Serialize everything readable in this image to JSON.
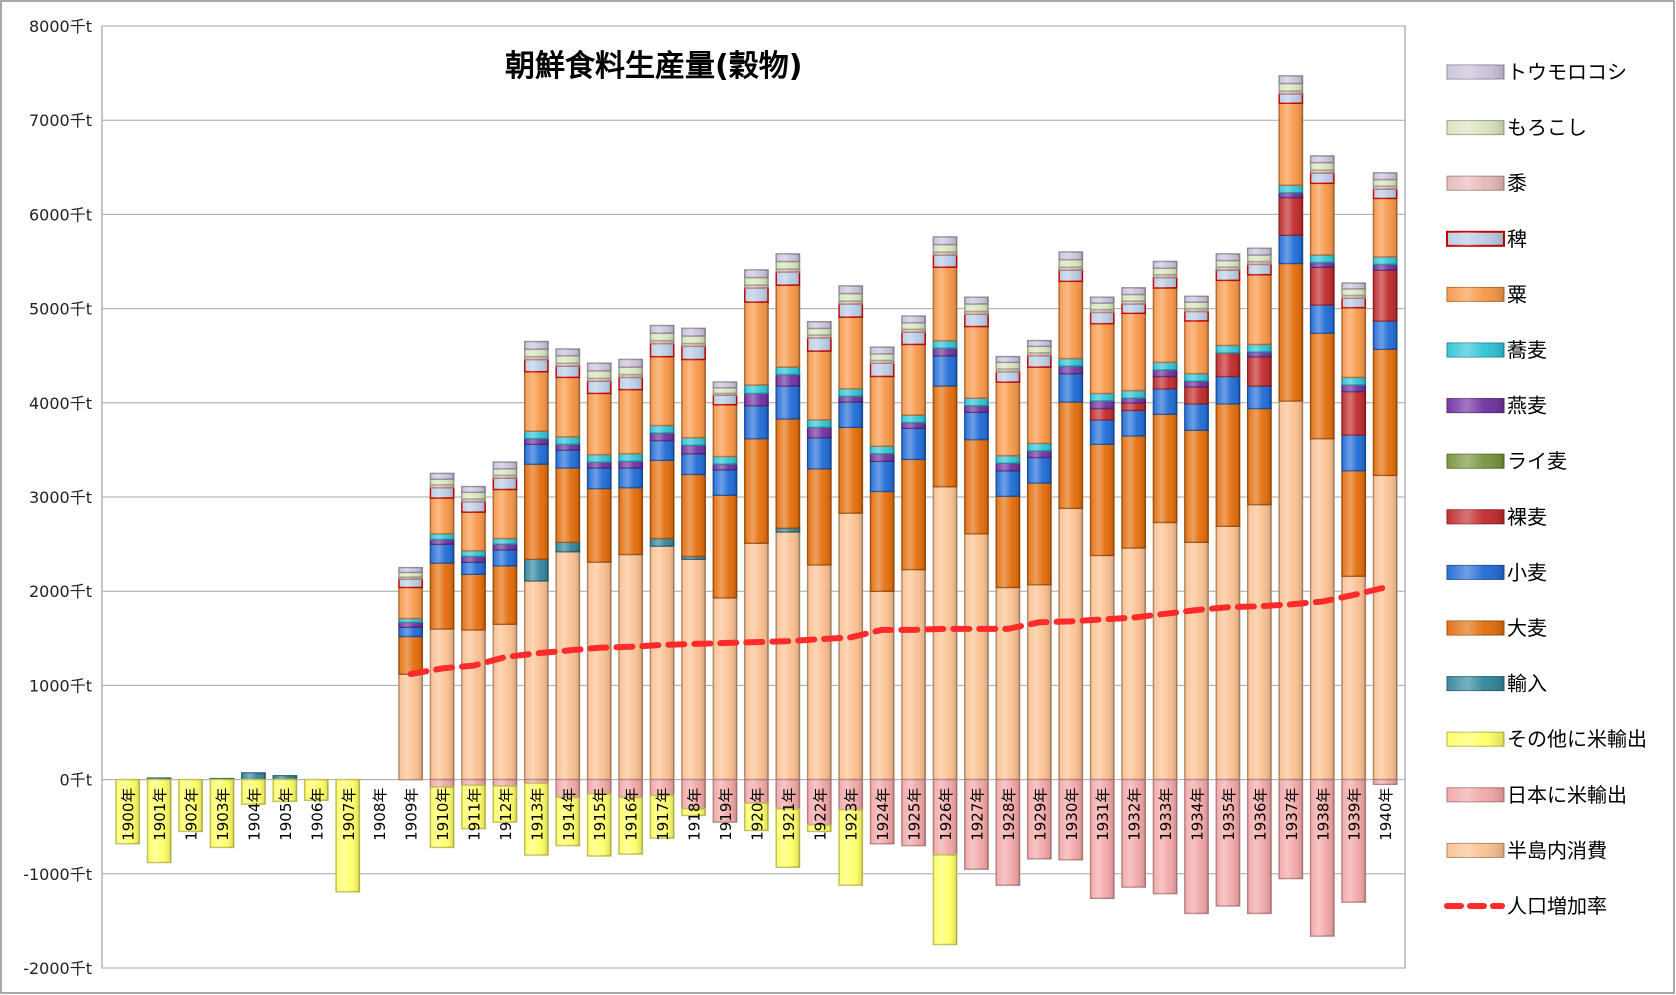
{
  "chart_data": {
    "type": "bar",
    "stacked": true,
    "title": "朝鮮食料生産量(穀物)",
    "xlabel": "",
    "ylabel": "",
    "unit": "千t",
    "ylim": [
      -2000,
      8000
    ],
    "ytick_labels": [
      "-2000千t",
      "-1000千t",
      "0千t",
      "1000千t",
      "2000千t",
      "3000千t",
      "4000千t",
      "5000千t",
      "6000千t",
      "7000千t",
      "8000千t"
    ],
    "grid": true,
    "legend_position": "right",
    "categories": [
      "1900年",
      "1901年",
      "1902年",
      "1903年",
      "1904年",
      "1905年",
      "1906年",
      "1907年",
      "1908年",
      "1909年",
      "1910年",
      "1911年",
      "1912年",
      "1913年",
      "1914年",
      "1915年",
      "1916年",
      "1917年",
      "1918年",
      "1919年",
      "1920年",
      "1921年",
      "1922年",
      "1923年",
      "1924年",
      "1925年",
      "1926年",
      "1927年",
      "1928年",
      "1929年",
      "1930年",
      "1931年",
      "1932年",
      "1933年",
      "1934年",
      "1935年",
      "1936年",
      "1937年",
      "1938年",
      "1939年",
      "1940年"
    ],
    "legend_order": [
      "トウモロコシ",
      "もろこし",
      "黍",
      "稗",
      "粟",
      "蕎麦",
      "燕麦",
      "ライ麦",
      "裸麦",
      "小麦",
      "大麦",
      "輸入",
      "その他に米輸出",
      "日本に米輸出",
      "半島内消費",
      "人口増加率"
    ],
    "series": [
      {
        "name": "半島内消費",
        "color": "#fac090",
        "stack": "positive",
        "values": [
          0,
          0,
          0,
          0,
          0,
          0,
          0,
          0,
          0,
          1120,
          1600,
          1590,
          1650,
          2110,
          2420,
          2310,
          2390,
          2480,
          2340,
          1930,
          2510,
          2630,
          2280,
          2830,
          2000,
          2230,
          3110,
          2610,
          2040,
          2070,
          2880,
          2380,
          2460,
          2730,
          2520,
          2690,
          2920,
          4020,
          3620,
          2160,
          3230
        ]
      },
      {
        "name": "輸入",
        "color": "#31859c",
        "stack": "positive",
        "values": [
          0,
          15,
          0,
          10,
          70,
          40,
          0,
          0,
          0,
          0,
          0,
          0,
          0,
          230,
          100,
          0,
          0,
          80,
          30,
          0,
          0,
          40,
          0,
          0,
          0,
          0,
          0,
          0,
          0,
          0,
          0,
          0,
          0,
          0,
          0,
          0,
          0,
          0,
          0,
          0,
          0
        ]
      },
      {
        "name": "大麦",
        "color": "#e36c09",
        "values": [
          0,
          0,
          0,
          0,
          0,
          0,
          0,
          0,
          0,
          400,
          700,
          590,
          620,
          1010,
          790,
          780,
          710,
          830,
          870,
          1090,
          1110,
          1160,
          1020,
          910,
          1060,
          1170,
          1070,
          1000,
          970,
          1080,
          1130,
          1180,
          1190,
          1150,
          1190,
          1300,
          1020,
          1460,
          1120,
          1120,
          1340
        ]
      },
      {
        "name": "小麦",
        "color": "#1f6bd6",
        "values": [
          0,
          0,
          0,
          0,
          0,
          0,
          0,
          0,
          0,
          100,
          200,
          130,
          170,
          210,
          190,
          220,
          210,
          210,
          220,
          270,
          350,
          350,
          330,
          270,
          320,
          330,
          320,
          290,
          270,
          270,
          300,
          260,
          270,
          270,
          280,
          290,
          240,
          300,
          300,
          380,
          300
        ]
      },
      {
        "name": "裸麦",
        "color": "#c0282a",
        "values": [
          0,
          0,
          0,
          0,
          0,
          0,
          0,
          0,
          0,
          0,
          0,
          0,
          0,
          0,
          0,
          0,
          0,
          0,
          0,
          0,
          0,
          0,
          0,
          0,
          0,
          0,
          0,
          0,
          0,
          0,
          0,
          120,
          80,
          130,
          180,
          250,
          310,
          400,
          400,
          460,
          540
        ]
      },
      {
        "name": "ライ麦",
        "color": "#77933c",
        "values": [
          0,
          0,
          0,
          0,
          0,
          0,
          0,
          0,
          0,
          0,
          0,
          0,
          0,
          0,
          0,
          0,
          0,
          0,
          0,
          0,
          0,
          0,
          0,
          0,
          0,
          0,
          0,
          0,
          0,
          0,
          0,
          0,
          0,
          0,
          0,
          0,
          0,
          0,
          0,
          0,
          0
        ]
      },
      {
        "name": "燕麦",
        "color": "#7030a0",
        "values": [
          0,
          0,
          0,
          0,
          0,
          0,
          0,
          0,
          0,
          50,
          50,
          60,
          60,
          60,
          60,
          60,
          70,
          80,
          90,
          60,
          130,
          120,
          110,
          60,
          80,
          60,
          80,
          70,
          80,
          70,
          80,
          80,
          50,
          70,
          60,
          0,
          50,
          50,
          50,
          70,
          60
        ]
      },
      {
        "name": "蕎麦",
        "color": "#2ec4d6",
        "values": [
          0,
          0,
          0,
          0,
          0,
          0,
          0,
          0,
          0,
          40,
          60,
          60,
          60,
          80,
          80,
          80,
          80,
          80,
          80,
          80,
          90,
          80,
          80,
          80,
          80,
          80,
          80,
          80,
          80,
          80,
          80,
          80,
          80,
          80,
          80,
          80,
          80,
          80,
          80,
          80,
          80
        ]
      },
      {
        "name": "粟",
        "color": "#f79646",
        "values": [
          0,
          0,
          0,
          0,
          0,
          0,
          0,
          0,
          0,
          330,
          380,
          410,
          520,
          630,
          630,
          650,
          680,
          730,
          830,
          550,
          880,
          870,
          730,
          760,
          740,
          750,
          780,
          760,
          780,
          810,
          820,
          740,
          820,
          790,
          560,
          690,
          740,
          870,
          760,
          740,
          620
        ]
      },
      {
        "name": "稗",
        "color": "#b8cce4",
        "outline": "#c00000",
        "values": [
          0,
          0,
          0,
          0,
          0,
          0,
          0,
          0,
          0,
          90,
          110,
          110,
          120,
          130,
          120,
          130,
          130,
          140,
          140,
          100,
          150,
          140,
          140,
          140,
          140,
          130,
          130,
          130,
          110,
          120,
          120,
          120,
          100,
          110,
          100,
          110,
          110,
          100,
          110,
          100,
          100
        ]
      },
      {
        "name": "黍",
        "color": "#e6b9b8",
        "values": [
          0,
          0,
          0,
          0,
          0,
          0,
          0,
          0,
          0,
          20,
          30,
          30,
          30,
          30,
          30,
          30,
          30,
          30,
          30,
          20,
          30,
          30,
          30,
          30,
          30,
          30,
          30,
          30,
          30,
          30,
          30,
          30,
          30,
          30,
          30,
          30,
          30,
          30,
          30,
          30,
          30
        ]
      },
      {
        "name": "もろこし",
        "color": "#d7e4bd",
        "values": [
          0,
          0,
          0,
          0,
          0,
          0,
          0,
          0,
          0,
          50,
          60,
          70,
          70,
          80,
          80,
          80,
          80,
          80,
          80,
          60,
          80,
          80,
          70,
          80,
          70,
          70,
          80,
          80,
          70,
          70,
          80,
          70,
          70,
          70,
          70,
          70,
          70,
          80,
          80,
          70,
          70
        ]
      },
      {
        "name": "トウモロコシ",
        "color": "#ccc1da",
        "values": [
          0,
          0,
          0,
          0,
          0,
          0,
          0,
          0,
          0,
          50,
          60,
          60,
          70,
          80,
          70,
          80,
          80,
          80,
          80,
          60,
          80,
          80,
          70,
          80,
          70,
          70,
          80,
          70,
          60,
          60,
          80,
          60,
          70,
          70,
          60,
          70,
          70,
          80,
          70,
          60,
          70
        ]
      },
      {
        "name": "日本に米輸出",
        "color": "#f2a6a6",
        "stack": "negative",
        "values": [
          0,
          0,
          0,
          0,
          0,
          0,
          0,
          0,
          0,
          0,
          -80,
          -60,
          -70,
          -40,
          -190,
          -150,
          -190,
          -170,
          -310,
          -450,
          -250,
          -310,
          -480,
          -320,
          -680,
          -700,
          -800,
          -950,
          -1120,
          -840,
          -850,
          -1260,
          -1140,
          -1210,
          -1420,
          -1340,
          -1420,
          -1050,
          -1660,
          -1300,
          -50
        ]
      },
      {
        "name": "その他に米輸出",
        "color": "#ffff66",
        "stack": "negative",
        "values": [
          -680,
          -880,
          -550,
          -720,
          -260,
          -230,
          -220,
          -1190,
          0,
          0,
          -640,
          -460,
          -380,
          -760,
          -510,
          -660,
          -600,
          -450,
          -70,
          0,
          -290,
          -620,
          -70,
          -800,
          0,
          0,
          -950,
          0,
          0,
          0,
          0,
          0,
          0,
          0,
          0,
          0,
          0,
          0,
          0,
          0,
          0
        ]
      },
      {
        "name": "人口増加率",
        "color": "#ff2a2a",
        "type": "line",
        "values": [
          null,
          null,
          null,
          null,
          null,
          null,
          null,
          null,
          null,
          1120,
          1180,
          1210,
          1300,
          1340,
          1370,
          1400,
          1410,
          1430,
          1440,
          1450,
          1460,
          1470,
          1490,
          1510,
          1590,
          1590,
          1600,
          1600,
          1600,
          1670,
          1680,
          1700,
          1720,
          1760,
          1800,
          1830,
          1840,
          1860,
          1890,
          1960,
          2040
        ]
      }
    ]
  }
}
